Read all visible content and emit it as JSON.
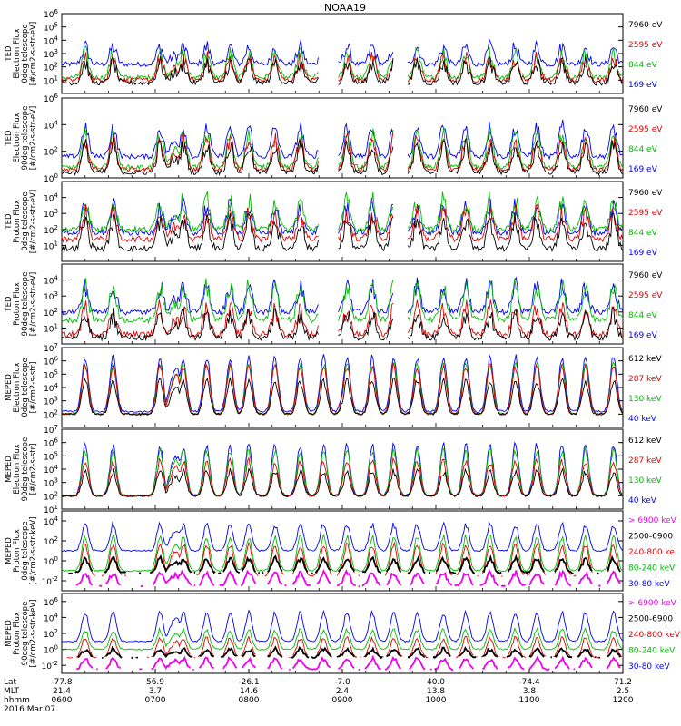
{
  "chart_data": {
    "type": "line",
    "title": "NOAA19",
    "date_label": "2016 Mar 07",
    "x_axis": {
      "row_labels": [
        "Lat",
        "MLT",
        "hhmm"
      ],
      "ticks": [
        {
          "lat": "-77.8",
          "mlt": "21.4",
          "hhmm": "0600"
        },
        {
          "lat": "56.9",
          "mlt": "3.7",
          "hhmm": "0700"
        },
        {
          "lat": "-26.1",
          "mlt": "14.6",
          "hhmm": "0800"
        },
        {
          "lat": "-7.0",
          "mlt": "2.4",
          "hhmm": "0900"
        },
        {
          "lat": "40.0",
          "mlt": "13.8",
          "hhmm": "1000"
        },
        {
          "lat": "-74.4",
          "mlt": "3.8",
          "hhmm": "1100"
        },
        {
          "lat": "71.2",
          "mlt": "2.5",
          "hhmm": "1200"
        }
      ],
      "range_hours": [
        6,
        12
      ]
    },
    "panels": [
      {
        "ylabel_lines": [
          "TED",
          "Electron Flux",
          "0deg telescope",
          "[#/cm2-s-str-eV]"
        ],
        "ylim_log10": [
          0,
          6
        ],
        "tick_labels": [
          {
            "base": "10",
            "exp": "1",
            "v": 1
          },
          {
            "base": "10",
            "exp": "2",
            "v": 2
          },
          {
            "base": "10",
            "exp": "3",
            "v": 3
          },
          {
            "base": "10",
            "exp": "4",
            "v": 4
          },
          {
            "base": "10",
            "exp": "5",
            "v": 5
          },
          {
            "base": "10",
            "exp": "6",
            "v": 6
          }
        ],
        "legend": [
          {
            "label": "7960 eV",
            "color": "#000000"
          },
          {
            "label": "2595 eV",
            "color": "#dd0000"
          },
          {
            "label": "844 eV",
            "color": "#00bb00"
          },
          {
            "label": "169 eV",
            "color": "#0000ee"
          }
        ],
        "series_levels_log10": {
          "169 eV": [
            2.2,
            3.5
          ],
          "844 eV": [
            1.2,
            3.0
          ],
          "2595 eV": [
            1.0,
            2.6
          ],
          "7960 eV": [
            0.8,
            2.3
          ]
        }
      },
      {
        "ylabel_lines": [
          "TED",
          "Electron Flux",
          "90deg telescope",
          "[#/cm2-s-str-eV]"
        ],
        "ylim_log10": [
          0,
          6
        ],
        "tick_labels": [
          {
            "base": "10",
            "exp": "0",
            "v": 0
          },
          {
            "base": "10",
            "exp": "2",
            "v": 2
          },
          {
            "base": "10",
            "exp": "4",
            "v": 4
          },
          {
            "base": "10",
            "exp": "6",
            "v": 6
          }
        ],
        "legend": [
          {
            "label": "7960 eV",
            "color": "#000000"
          },
          {
            "label": "2595 eV",
            "color": "#dd0000"
          },
          {
            "label": "844 eV",
            "color": "#00bb00"
          },
          {
            "label": "169 eV",
            "color": "#0000ee"
          }
        ],
        "series_levels_log10": {
          "169 eV": [
            1.6,
            3.8
          ],
          "844 eV": [
            0.8,
            3.2
          ],
          "2595 eV": [
            0.6,
            2.8
          ],
          "7960 eV": [
            0.4,
            2.4
          ]
        }
      },
      {
        "ylabel_lines": [
          "TED",
          "Proton Flux",
          "0deg telescope",
          "[#/cm2-s-str-eV]"
        ],
        "ylim_log10": [
          0,
          5
        ],
        "tick_labels": [
          {
            "base": "10",
            "exp": "1",
            "v": 1
          },
          {
            "base": "10",
            "exp": "2",
            "v": 2
          },
          {
            "base": "10",
            "exp": "3",
            "v": 3
          },
          {
            "base": "10",
            "exp": "4",
            "v": 4
          }
        ],
        "legend": [
          {
            "label": "7960 eV",
            "color": "#000000"
          },
          {
            "label": "2595 eV",
            "color": "#dd0000"
          },
          {
            "label": "844 eV",
            "color": "#00bb00"
          },
          {
            "label": "169 eV",
            "color": "#0000ee"
          }
        ],
        "series_levels_log10": {
          "169 eV": [
            1.8,
            3.4
          ],
          "844 eV": [
            2.0,
            3.8
          ],
          "2595 eV": [
            1.4,
            3.0
          ],
          "7960 eV": [
            0.8,
            2.5
          ]
        }
      },
      {
        "ylabel_lines": [
          "TED",
          "Proton Flux",
          "90deg telescope",
          "[#/cm2-s-str-eV]"
        ],
        "ylim_log10": [
          0,
          5
        ],
        "tick_labels": [
          {
            "base": "10",
            "exp": "1",
            "v": 1
          },
          {
            "base": "10",
            "exp": "2",
            "v": 2
          },
          {
            "base": "10",
            "exp": "3",
            "v": 3
          },
          {
            "base": "10",
            "exp": "4",
            "v": 4
          }
        ],
        "legend": [
          {
            "label": "7960 eV",
            "color": "#000000"
          },
          {
            "label": "2595 eV",
            "color": "#dd0000"
          },
          {
            "label": "844 eV",
            "color": "#00bb00"
          },
          {
            "label": "169 eV",
            "color": "#0000ee"
          }
        ],
        "series_levels_log10": {
          "169 eV": [
            2.0,
            3.6
          ],
          "844 eV": [
            1.5,
            3.6
          ],
          "2595 eV": [
            0.6,
            2.2
          ],
          "7960 eV": [
            0.4,
            1.8
          ]
        }
      },
      {
        "ylabel_lines": [
          "MEPED",
          "Electron Flux",
          "0deg telescope",
          "[#/cm2-s-str]"
        ],
        "ylim_log10": [
          1,
          7
        ],
        "tick_labels": [
          {
            "base": "10",
            "exp": "2",
            "v": 2
          },
          {
            "base": "10",
            "exp": "3",
            "v": 3
          },
          {
            "base": "10",
            "exp": "4",
            "v": 4
          },
          {
            "base": "10",
            "exp": "5",
            "v": 5
          },
          {
            "base": "10",
            "exp": "6",
            "v": 6
          },
          {
            "base": "10",
            "exp": "7",
            "v": 7
          }
        ],
        "legend": [
          {
            "label": "612 keV",
            "color": "#000000"
          },
          {
            "label": "287 keV",
            "color": "#dd0000"
          },
          {
            "label": "130 keV",
            "color": "#00bb00"
          },
          {
            "label": "40 keV",
            "color": "#0000ee"
          }
        ],
        "series_levels_log10": {
          "40 keV": [
            2.2,
            6.3
          ],
          "130 keV": [
            2.0,
            5.8
          ],
          "287 keV": [
            2.0,
            5.6
          ],
          "612 keV": [
            2.0,
            4.5
          ]
        }
      },
      {
        "ylabel_lines": [
          "MEPED",
          "Electron Flux",
          "90deg telescope",
          "[#/cm2-s-str]"
        ],
        "ylim_log10": [
          1,
          7
        ],
        "tick_labels": [
          {
            "base": "10",
            "exp": "1",
            "v": 1
          },
          {
            "base": "10",
            "exp": "2",
            "v": 2
          },
          {
            "base": "10",
            "exp": "3",
            "v": 3
          },
          {
            "base": "10",
            "exp": "4",
            "v": 4
          },
          {
            "base": "10",
            "exp": "5",
            "v": 5
          },
          {
            "base": "10",
            "exp": "6",
            "v": 6
          },
          {
            "base": "10",
            "exp": "7",
            "v": 7
          }
        ],
        "legend": [
          {
            "label": "612 keV",
            "color": "#000000"
          },
          {
            "label": "287 keV",
            "color": "#dd0000"
          },
          {
            "label": "130 keV",
            "color": "#00bb00"
          },
          {
            "label": "40 keV",
            "color": "#0000ee"
          }
        ],
        "series_levels_log10": {
          "40 keV": [
            2.0,
            5.8
          ],
          "130 keV": [
            2.0,
            5.4
          ],
          "287 keV": [
            2.0,
            4.6
          ],
          "612 keV": [
            2.0,
            3.8
          ]
        }
      },
      {
        "ylabel_lines": [
          "MEPED",
          "Proton Flux",
          "0deg telescope",
          "[#/cm2-s-str-keV]"
        ],
        "ylim_log10": [
          -3,
          5
        ],
        "tick_labels": [
          {
            "base": "10",
            "exp": "-2",
            "v": -2
          },
          {
            "base": "10",
            "exp": "0",
            "v": 0
          },
          {
            "base": "10",
            "exp": "2",
            "v": 2
          },
          {
            "base": "10",
            "exp": "4",
            "v": 4
          }
        ],
        "legend": [
          {
            "label": "> 6900 keV",
            "color": "#ee00ee"
          },
          {
            "label": "2500-6900",
            "color": "#000000"
          },
          {
            "label": "240-800 ke",
            "color": "#dd0000"
          },
          {
            "label": "80-240 keV",
            "color": "#00bb00"
          },
          {
            "label": "30-80 keV",
            "color": "#0000ee"
          }
        ],
        "series_levels_log10": {
          "30-80 keV": [
            1.0,
            3.6
          ],
          "80-240 keV": [
            -1.0,
            2.4
          ],
          "240-800 ke": [
            -1.5,
            1.6
          ],
          "2500-6900": [
            -1.2,
            0.2
          ],
          "> 6900 keV": [
            -2.5,
            -1.2
          ]
        }
      },
      {
        "ylabel_lines": [
          "MEPED",
          "Proton Flux",
          "90deg telescope",
          "[#/cm2-s-str-keV]"
        ],
        "ylim_log10": [
          -3,
          7
        ],
        "tick_labels": [
          {
            "base": "10",
            "exp": "-2",
            "v": -2
          },
          {
            "base": "10",
            "exp": "0",
            "v": 0
          },
          {
            "base": "10",
            "exp": "2",
            "v": 2
          },
          {
            "base": "10",
            "exp": "4",
            "v": 4
          },
          {
            "base": "10",
            "exp": "6",
            "v": 6
          }
        ],
        "legend": [
          {
            "label": "> 6900 keV",
            "color": "#ee00ee"
          },
          {
            "label": "2500-6900",
            "color": "#000000"
          },
          {
            "label": "240-800 keV",
            "color": "#dd0000"
          },
          {
            "label": "80-240 keV",
            "color": "#00bb00"
          },
          {
            "label": "30-80 keV",
            "color": "#0000ee"
          }
        ],
        "series_levels_log10": {
          "30-80 keV": [
            1.0,
            4.6
          ],
          "80-240 keV": [
            0.0,
            2.4
          ],
          "240-800 keV": [
            -1.0,
            1.4
          ],
          "2500-6900": [
            -1.0,
            0.0
          ],
          "> 6900 keV": [
            -2.5,
            -1.2
          ]
        }
      }
    ],
    "equator_crossings_hours": [
      6.25,
      6.55,
      7.05,
      7.3,
      7.55,
      7.8,
      8.0,
      8.28,
      8.55,
      8.8,
      9.05,
      9.32,
      9.55,
      9.8,
      10.08,
      10.32,
      10.58,
      10.85,
      11.08,
      11.35,
      11.6,
      11.9
    ]
  }
}
